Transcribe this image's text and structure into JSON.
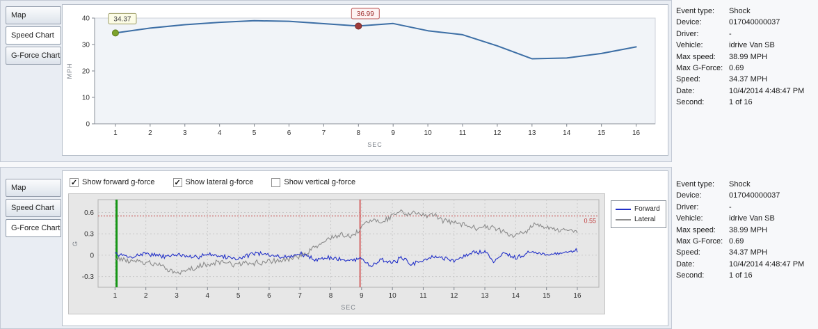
{
  "tabs": {
    "items": [
      "Map",
      "Speed Chart",
      "G-Force Chart"
    ]
  },
  "panels": [
    {
      "id": "top",
      "selected_tab": "Speed Chart"
    },
    {
      "id": "bottom",
      "selected_tab": "G-Force Chart"
    }
  ],
  "info": {
    "rows": [
      {
        "label": "Event type:",
        "value": "Shock"
      },
      {
        "label": "Device:",
        "value": "017040000037"
      },
      {
        "label": "Driver:",
        "value": "-"
      },
      {
        "label": "Vehicle:",
        "value": "idrive Van SB"
      },
      {
        "label": "Max speed:",
        "value": "38.99 MPH"
      },
      {
        "label": "Max G-Force:",
        "value": "0.69"
      },
      {
        "label": "Speed:",
        "value": "34.37 MPH"
      },
      {
        "label": "Date:",
        "value": "10/4/2014 4:48:47 PM"
      },
      {
        "label": "Second:",
        "value": "1 of 16"
      }
    ]
  },
  "gforce_controls": {
    "checkboxes": [
      {
        "label": "Show forward g-force",
        "checked": true
      },
      {
        "label": "Show lateral g-force",
        "checked": true
      },
      {
        "label": "Show vertical g-force",
        "checked": false
      }
    ]
  },
  "chart_data": [
    {
      "id": "speed",
      "type": "line",
      "title": "",
      "xlabel": "SEC",
      "ylabel": "MPH",
      "x": [
        1,
        2,
        3,
        4,
        5,
        6,
        7,
        8,
        9,
        10,
        11,
        12,
        13,
        14,
        15,
        16
      ],
      "values": [
        34.37,
        36.2,
        37.5,
        38.4,
        38.99,
        38.8,
        37.9,
        36.99,
        37.95,
        35.2,
        33.7,
        29.5,
        24.6,
        24.9,
        26.6,
        29.1
      ],
      "ylim": [
        0,
        40
      ],
      "yticks": [
        0,
        10,
        20,
        30,
        40
      ],
      "grid": false,
      "line_color": "#3c6ea5",
      "markers": [
        {
          "x": 1,
          "y": 34.37,
          "label": "34.37",
          "dot_fill": "#7da32c",
          "dot_stroke": "#5d7a1e",
          "box_border": "#9a9a62",
          "box_fill": "#fcfce6",
          "text_color": "#444444"
        },
        {
          "x": 8,
          "y": 36.99,
          "label": "36.99",
          "dot_fill": "#9e3a3a",
          "dot_stroke": "#762929",
          "box_border": "#bb5555",
          "box_fill": "#fdf2f2",
          "text_color": "#a03030"
        }
      ]
    },
    {
      "id": "gforce",
      "type": "line",
      "title": "",
      "xlabel": "SEC",
      "ylabel": "G",
      "ylim": [
        -0.45,
        0.78
      ],
      "yticks": [
        -0.3,
        0,
        0.3,
        0.6
      ],
      "xticks": [
        1,
        2,
        3,
        4,
        5,
        6,
        7,
        8,
        9,
        10,
        11,
        12,
        13,
        14,
        15,
        16
      ],
      "grid": true,
      "legend_position": "right",
      "threshold": {
        "y": 0.55,
        "label": "0.55",
        "color": "#c03a3a"
      },
      "vlines": [
        {
          "x": 1.05,
          "color": "#169616",
          "width": 3
        },
        {
          "x": 8.95,
          "color": "#cc3333",
          "width": 1.5
        }
      ],
      "series": [
        {
          "name": "Forward",
          "color": "#2230c8",
          "noise": 0.04,
          "seed": 7,
          "keypoints": [
            [
              1,
              0.02
            ],
            [
              1.5,
              -0.03
            ],
            [
              2,
              0.03
            ],
            [
              2.5,
              -0.02
            ],
            [
              3,
              0.01
            ],
            [
              3.5,
              -0.04
            ],
            [
              4,
              0.02
            ],
            [
              4.5,
              -0.02
            ],
            [
              5,
              -0.05
            ],
            [
              5.5,
              0.03
            ],
            [
              6,
              0.0
            ],
            [
              6.5,
              -0.03
            ],
            [
              7,
              0.02
            ],
            [
              7.5,
              -0.06
            ],
            [
              8,
              -0.03
            ],
            [
              8.5,
              -0.08
            ],
            [
              9,
              -0.04
            ],
            [
              9.3,
              -0.16
            ],
            [
              9.6,
              -0.05
            ],
            [
              10,
              -0.12
            ],
            [
              10.3,
              -0.03
            ],
            [
              10.6,
              -0.14
            ],
            [
              11,
              -0.06
            ],
            [
              11.5,
              -0.02
            ],
            [
              12,
              -0.08
            ],
            [
              12.5,
              0.02
            ],
            [
              13,
              0.06
            ],
            [
              13.3,
              -0.1
            ],
            [
              13.6,
              0.04
            ],
            [
              14,
              -0.03
            ],
            [
              14.5,
              0.05
            ],
            [
              15,
              0.0
            ],
            [
              15.5,
              0.04
            ],
            [
              16,
              0.06
            ]
          ]
        },
        {
          "name": "Lateral",
          "color": "#8c8c8c",
          "noise": 0.05,
          "seed": 13,
          "keypoints": [
            [
              1,
              -0.04
            ],
            [
              1.5,
              -0.08
            ],
            [
              2,
              -0.1
            ],
            [
              2.5,
              -0.16
            ],
            [
              3,
              -0.24
            ],
            [
              3.3,
              -0.22
            ],
            [
              3.6,
              -0.18
            ],
            [
              4,
              -0.12
            ],
            [
              4.5,
              -0.1
            ],
            [
              5,
              -0.13
            ],
            [
              5.5,
              -0.11
            ],
            [
              6,
              -0.09
            ],
            [
              6.5,
              -0.06
            ],
            [
              7,
              -0.02
            ],
            [
              7.3,
              0.06
            ],
            [
              7.6,
              0.14
            ],
            [
              8,
              0.25
            ],
            [
              8.3,
              0.28
            ],
            [
              8.6,
              0.26
            ],
            [
              8.9,
              0.32
            ],
            [
              9.1,
              0.46
            ],
            [
              9.4,
              0.5
            ],
            [
              9.7,
              0.48
            ],
            [
              10,
              0.55
            ],
            [
              10.2,
              0.63
            ],
            [
              10.4,
              0.58
            ],
            [
              10.7,
              0.6
            ],
            [
              11,
              0.55
            ],
            [
              11.3,
              0.57
            ],
            [
              11.6,
              0.5
            ],
            [
              12,
              0.46
            ],
            [
              12.4,
              0.42
            ],
            [
              12.8,
              0.38
            ],
            [
              13,
              0.42
            ],
            [
              13.4,
              0.36
            ],
            [
              13.8,
              0.3
            ],
            [
              14,
              0.28
            ],
            [
              14.3,
              0.33
            ],
            [
              14.6,
              0.42
            ],
            [
              15,
              0.38
            ],
            [
              15.4,
              0.34
            ],
            [
              15.7,
              0.36
            ],
            [
              16,
              0.3
            ]
          ]
        }
      ]
    }
  ]
}
